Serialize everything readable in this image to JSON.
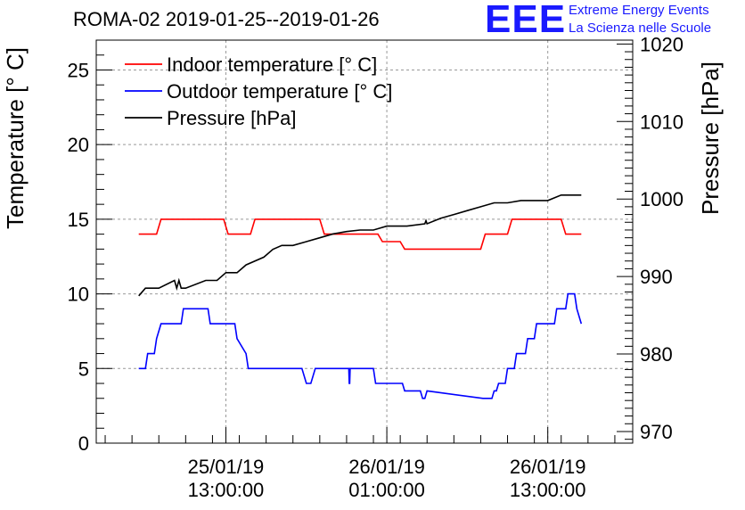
{
  "header": {
    "title": "ROMA-02 2019-01-25--2019-01-26",
    "logo_text": "EEE",
    "logo_line1": "Extreme Energy Events",
    "logo_line2": "La Scienza nelle Scuole",
    "logo_color": "#1a1aff"
  },
  "chart_data": {
    "type": "line",
    "title": "ROMA-02 2019-01-25--2019-01-26",
    "ylabel_left": "Temperature [° C]",
    "ylabel_right": "Pressure [hPa]",
    "xlabel": "",
    "grid": true,
    "legend_position": "top-left",
    "ylim_left": [
      0,
      27
    ],
    "ylim_right": [
      968.5,
      1020.5
    ],
    "xlim": [
      "2019-01-25 03:20",
      "2019-01-26 19:20"
    ],
    "left_ticks": [
      "0",
      "5",
      "10",
      "15",
      "20",
      "25"
    ],
    "right_ticks": [
      "970",
      "980",
      "990",
      "1000",
      "1010",
      "1020"
    ],
    "x_ticks": [
      {
        "time": "2019-01-25 13:00",
        "date": "25/01/19",
        "clock": "13:00:00"
      },
      {
        "time": "2019-01-26 01:00",
        "date": "26/01/19",
        "clock": "01:00:00"
      },
      {
        "time": "2019-01-26 13:00",
        "date": "26/01/19",
        "clock": "13:00:00"
      }
    ],
    "series": [
      {
        "name": "Indoor temperature [° C]",
        "color": "#ff0000",
        "axis": "left",
        "x": [
          "2019-01-25 06:30",
          "2019-01-25 07:50",
          "2019-01-25 08:10",
          "2019-01-25 12:50",
          "2019-01-25 13:10",
          "2019-01-25 14:50",
          "2019-01-25 15:10",
          "2019-01-25 20:00",
          "2019-01-25 20:20",
          "2019-01-26 00:20",
          "2019-01-26 00:40",
          "2019-01-26 02:00",
          "2019-01-26 02:20",
          "2019-01-26 08:00",
          "2019-01-26 08:20",
          "2019-01-26 10:00",
          "2019-01-26 10:20",
          "2019-01-26 14:00",
          "2019-01-26 14:20",
          "2019-01-26 15:30"
        ],
        "y": [
          14,
          14,
          15,
          15,
          14,
          14,
          15,
          15,
          14,
          14,
          13.5,
          13.5,
          13,
          13,
          14,
          14,
          15,
          15,
          14,
          14
        ]
      },
      {
        "name": "Outdoor temperature [° C]",
        "color": "#0000ff",
        "axis": "left",
        "x": [
          "2019-01-25 06:30",
          "2019-01-25 07:00",
          "2019-01-25 07:10",
          "2019-01-25 07:40",
          "2019-01-25 07:50",
          "2019-01-25 08:10",
          "2019-01-25 08:20",
          "2019-01-25 09:40",
          "2019-01-25 09:50",
          "2019-01-25 11:40",
          "2019-01-25 11:50",
          "2019-01-25 13:40",
          "2019-01-25 13:50",
          "2019-01-25 14:30",
          "2019-01-25 14:40",
          "2019-01-25 15:20",
          "2019-01-25 15:30",
          "2019-01-25 18:40",
          "2019-01-25 19:00",
          "2019-01-25 19:20",
          "2019-01-25 19:40",
          "2019-01-25 22:10",
          "2019-01-25 22:12",
          "2019-01-25 22:14",
          "2019-01-25 22:16",
          "2019-01-26 00:00",
          "2019-01-26 00:10",
          "2019-01-26 02:10",
          "2019-01-26 02:20",
          "2019-01-26 03:30",
          "2019-01-26 03:40",
          "2019-01-26 03:50",
          "2019-01-26 04:00",
          "2019-01-26 08:10",
          "2019-01-26 08:20",
          "2019-01-26 08:50",
          "2019-01-26 09:00",
          "2019-01-26 09:10",
          "2019-01-26 09:20",
          "2019-01-26 09:50",
          "2019-01-26 10:00",
          "2019-01-26 10:30",
          "2019-01-26 10:40",
          "2019-01-26 11:20",
          "2019-01-26 11:30",
          "2019-01-26 12:00",
          "2019-01-26 12:10",
          "2019-01-26 13:30",
          "2019-01-26 13:40",
          "2019-01-26 14:20",
          "2019-01-26 14:30",
          "2019-01-26 15:00",
          "2019-01-26 15:10",
          "2019-01-26 15:30"
        ],
        "y": [
          5,
          5,
          6,
          6,
          7,
          8,
          8,
          8,
          9,
          9,
          8,
          8,
          7,
          6,
          5,
          5,
          5,
          5,
          4,
          4,
          5,
          5,
          4,
          4,
          5,
          5,
          4,
          4,
          3.5,
          3.5,
          3,
          3,
          3.5,
          3,
          3,
          3,
          3.5,
          3.5,
          4,
          4,
          5,
          5,
          6,
          6,
          7,
          7,
          8,
          8,
          9,
          9,
          10,
          10,
          9,
          8
        ]
      },
      {
        "name": "Pressure [hPa]",
        "color": "#000000",
        "axis": "right",
        "x": [
          "2019-01-25 06:30",
          "2019-01-25 07:00",
          "2019-01-25 08:00",
          "2019-01-25 09:10",
          "2019-01-25 09:20",
          "2019-01-25 09:30",
          "2019-01-25 09:40",
          "2019-01-25 10:00",
          "2019-01-25 11:30",
          "2019-01-25 12:20",
          "2019-01-25 13:00",
          "2019-01-25 13:50",
          "2019-01-25 14:30",
          "2019-01-25 15:50",
          "2019-01-25 16:30",
          "2019-01-25 17:10",
          "2019-01-25 18:00",
          "2019-01-25 19:00",
          "2019-01-25 20:00",
          "2019-01-25 21:00",
          "2019-01-25 22:00",
          "2019-01-25 23:00",
          "2019-01-26 00:00",
          "2019-01-26 01:00",
          "2019-01-26 02:30",
          "2019-01-26 03:50",
          "2019-01-26 03:55",
          "2019-01-26 04:00",
          "2019-01-26 05:00",
          "2019-01-26 06:00",
          "2019-01-26 07:00",
          "2019-01-26 08:00",
          "2019-01-26 09:00",
          "2019-01-26 10:00",
          "2019-01-26 11:00",
          "2019-01-26 12:00",
          "2019-01-26 13:00",
          "2019-01-26 14:00",
          "2019-01-26 15:00",
          "2019-01-26 15:30"
        ],
        "y": [
          987.5,
          988.5,
          988.5,
          989.5,
          988.5,
          989.5,
          988.5,
          988.5,
          989.5,
          989.5,
          990.5,
          990.5,
          991.5,
          992.5,
          993.5,
          994.0,
          994.0,
          994.5,
          995.0,
          995.5,
          995.8,
          996.0,
          996.0,
          996.5,
          996.5,
          996.8,
          997.2,
          996.8,
          997.5,
          998.0,
          998.5,
          999.0,
          999.5,
          999.5,
          999.8,
          999.8,
          999.8,
          1000.5,
          1000.5,
          1000.5
        ]
      }
    ]
  }
}
